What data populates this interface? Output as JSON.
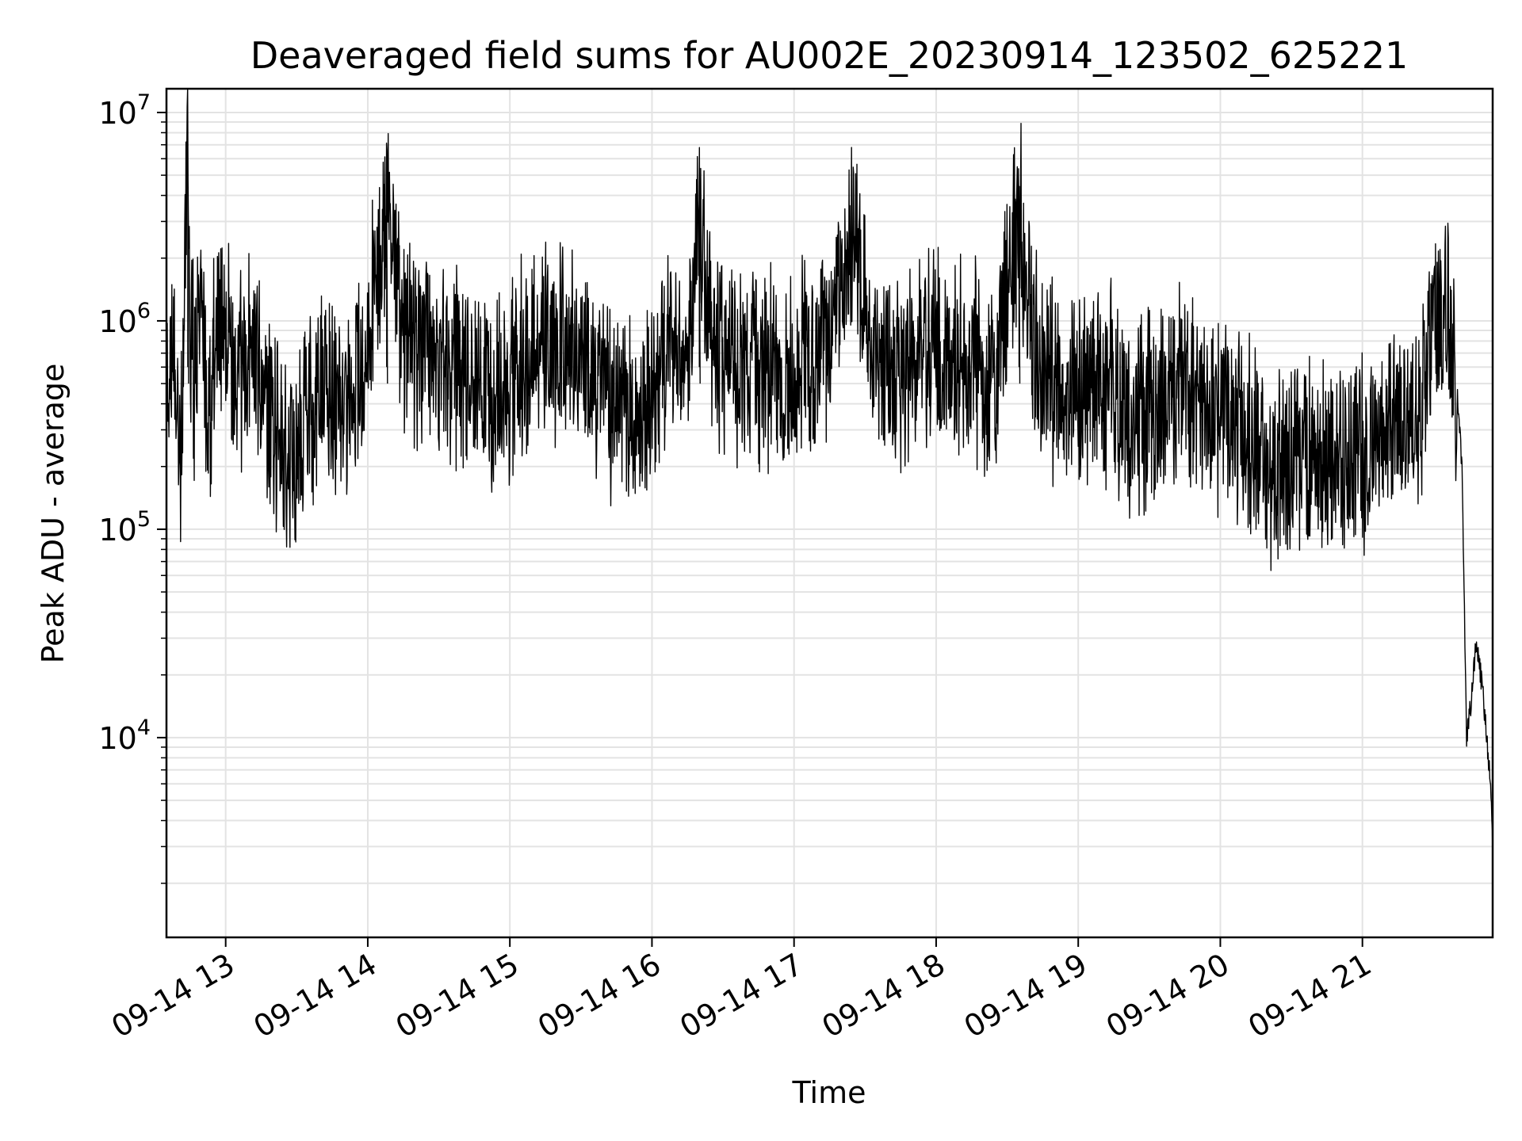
{
  "chart_data": {
    "type": "line",
    "title": "Deaveraged field sums for AU002E_20230914_123502_625221",
    "xlabel": "Time",
    "ylabel": "Peak ADU - average",
    "yscale": "log",
    "ylim": [
      1100,
      13000000
    ],
    "xlim": [
      "09-14 12:35",
      "09-14 21:55"
    ],
    "x_ticks": [
      "09-14 13",
      "09-14 14",
      "09-14 15",
      "09-14 16",
      "09-14 17",
      "09-14 18",
      "09-14 19",
      "09-14 20",
      "09-14 21"
    ],
    "y_ticks": [
      {
        "base": "10",
        "exp": "4"
      },
      {
        "base": "10",
        "exp": "5"
      },
      {
        "base": "10",
        "exp": "6"
      },
      {
        "base": "10",
        "exp": "7"
      }
    ],
    "grid": true,
    "line_color": "#000000",
    "series": [
      {
        "x": [
          "09-14 12:35",
          "09-14 12:38",
          "09-14 12:41",
          "09-14 12:44",
          "09-14 12:45",
          "09-14 12:47",
          "09-14 12:50",
          "09-14 12:53",
          "09-14 12:56",
          "09-14 12:59",
          "09-14 13:05",
          "09-14 13:12",
          "09-14 13:20",
          "09-14 13:30",
          "09-14 13:40",
          "09-14 13:50",
          "09-14 14:00",
          "09-14 14:08",
          "09-14 14:15",
          "09-14 14:25",
          "09-14 14:35",
          "09-14 14:45",
          "09-14 14:55",
          "09-14 15:05",
          "09-14 15:15",
          "09-14 15:25",
          "09-14 15:35",
          "09-14 15:45",
          "09-14 15:55",
          "09-14 16:05",
          "09-14 16:15",
          "09-14 16:20",
          "09-14 16:25",
          "09-14 16:35",
          "09-14 16:45",
          "09-14 16:55",
          "09-14 17:05",
          "09-14 17:15",
          "09-14 17:25",
          "09-14 17:35",
          "09-14 17:45",
          "09-14 17:55",
          "09-14 18:05",
          "09-14 18:15",
          "09-14 18:25",
          "09-14 18:35",
          "09-14 18:40",
          "09-14 18:45",
          "09-14 18:55",
          "09-14 19:05",
          "09-14 19:15",
          "09-14 19:25",
          "09-14 19:35",
          "09-14 19:45",
          "09-14 19:55",
          "09-14 20:05",
          "09-14 20:15",
          "09-14 20:25",
          "09-14 20:35",
          "09-14 20:45",
          "09-14 20:55",
          "09-14 21:05",
          "09-14 21:15",
          "09-14 21:25",
          "09-14 21:30",
          "09-14 21:35",
          "09-14 21:40",
          "09-14 21:42",
          "09-14 21:44",
          "09-14 21:46",
          "09-14 21:48",
          "09-14 21:50",
          "09-14 21:52",
          "09-14 21:54",
          "09-14 21:55"
        ],
        "y": [
          300000,
          900000,
          150000,
          8500000,
          1200000,
          400000,
          1500000,
          250000,
          900000,
          1000000,
          500000,
          800000,
          300000,
          200000,
          600000,
          400000,
          800000,
          4000000,
          900000,
          700000,
          600000,
          500000,
          400000,
          600000,
          800000,
          700000,
          500000,
          400000,
          300000,
          700000,
          600000,
          3500000,
          800000,
          700000,
          600000,
          500000,
          700000,
          800000,
          2300000,
          700000,
          600000,
          800000,
          600000,
          700000,
          500000,
          3500000,
          1000000,
          600000,
          500000,
          400000,
          500000,
          300000,
          400000,
          500000,
          400000,
          300000,
          250000,
          200000,
          250000,
          220000,
          200000,
          300000,
          350000,
          400000,
          1000000,
          1300000,
          500000,
          200000,
          10000,
          15000,
          30000,
          20000,
          12000,
          6000,
          3000
        ]
      }
    ]
  }
}
